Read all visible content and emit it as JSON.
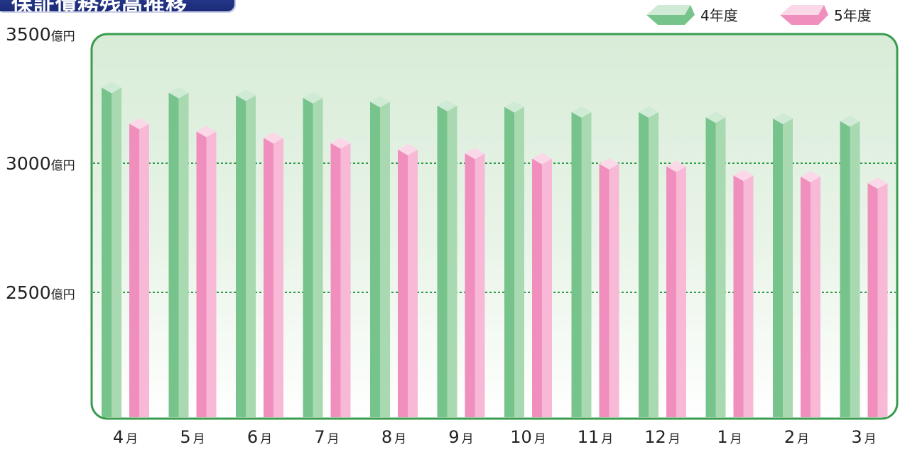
{
  "title": "保証債務残高推移",
  "colors": {
    "series_a_face": "#77c38c",
    "series_a_side": "#a8d9b0",
    "series_a_top": "#cfead5",
    "series_b_face": "#f08fbd",
    "series_b_side": "#f7b9d6",
    "series_b_top": "#fbd8e8",
    "frame": "#3a9c4f",
    "gridline": "#2e9a4a",
    "title_bg": "#1f3282"
  },
  "chart_data": {
    "type": "bar",
    "categories": [
      "4月",
      "5月",
      "6月",
      "7月",
      "8月",
      "9月",
      "10月",
      "11月",
      "12月",
      "1月",
      "2月",
      "3月"
    ],
    "category_numbers": [
      "4",
      "5",
      "6",
      "7",
      "8",
      "9",
      "10",
      "11",
      "12",
      "1",
      "2",
      "3"
    ],
    "category_suffix": "月",
    "series": [
      {
        "name": "4年度",
        "values": [
          3315,
          3295,
          3285,
          3275,
          3260,
          3245,
          3240,
          3220,
          3220,
          3200,
          3195,
          3185
        ]
      },
      {
        "name": "5年度",
        "values": [
          3175,
          3145,
          3120,
          3100,
          3075,
          3060,
          3040,
          3020,
          3010,
          2975,
          2970,
          2945
        ]
      }
    ],
    "ylim": [
      2000,
      3500
    ],
    "yticks": [
      {
        "value": 3500,
        "label": "3500",
        "unit": "億円"
      },
      {
        "value": 3000,
        "label": "3000",
        "unit": "億円"
      },
      {
        "value": 2500,
        "label": "2500",
        "unit": "億円"
      }
    ],
    "gridlines": [
      3000,
      2500
    ],
    "legend": "top-right",
    "grid": true
  }
}
